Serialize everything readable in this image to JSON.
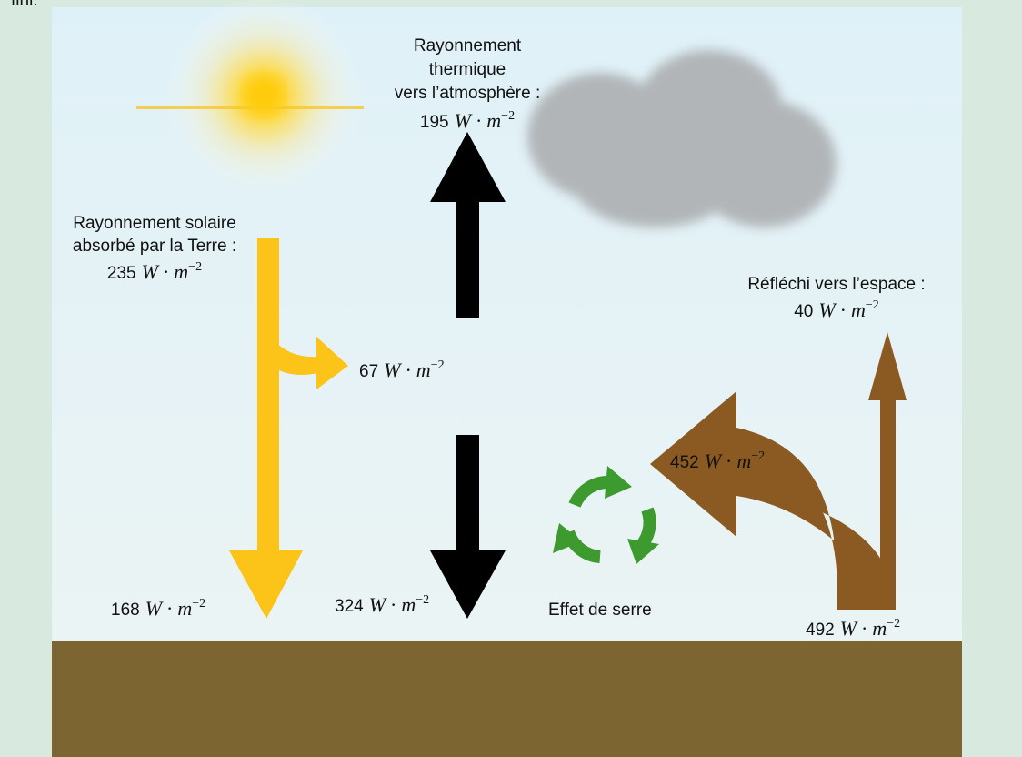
{
  "header": {
    "clipped_text": "fini."
  },
  "thermal": {
    "lines": [
      "Rayonnement",
      "thermique",
      "vers l’atmosphère :"
    ],
    "value": {
      "number": "195",
      "unit_w": "W",
      "dot": "·",
      "unit_m": "m",
      "exponent": "−2"
    }
  },
  "solar": {
    "lines": [
      "Rayonnement solaire",
      "absorbé par la Terre :"
    ],
    "value": {
      "number": "235",
      "unit_w": "W",
      "dot": "·",
      "unit_m": "m",
      "exponent": "−2"
    }
  },
  "branch": {
    "value": {
      "number": "67",
      "unit_w": "W",
      "dot": "·",
      "unit_m": "m",
      "exponent": "−2"
    }
  },
  "ground_solar": {
    "value": {
      "number": "168",
      "unit_w": "W",
      "dot": "·",
      "unit_m": "m",
      "exponent": "−2"
    }
  },
  "back_radiation": {
    "value": {
      "number": "324",
      "unit_w": "W",
      "dot": "·",
      "unit_m": "m",
      "exponent": "−2"
    }
  },
  "greenhouse": {
    "label": "Effet de serre"
  },
  "emitted": {
    "value": {
      "number": "492",
      "unit_w": "W",
      "dot": "·",
      "unit_m": "m",
      "exponent": "−2"
    }
  },
  "absorbed_atm": {
    "value": {
      "number": "452",
      "unit_w": "W",
      "dot": "·",
      "unit_m": "m",
      "exponent": "−2"
    }
  },
  "reflected": {
    "lines": [
      "Réfléchi vers l’espace :"
    ],
    "value": {
      "number": "40",
      "unit_w": "W",
      "dot": "·",
      "unit_m": "m",
      "exponent": "−2"
    }
  }
}
